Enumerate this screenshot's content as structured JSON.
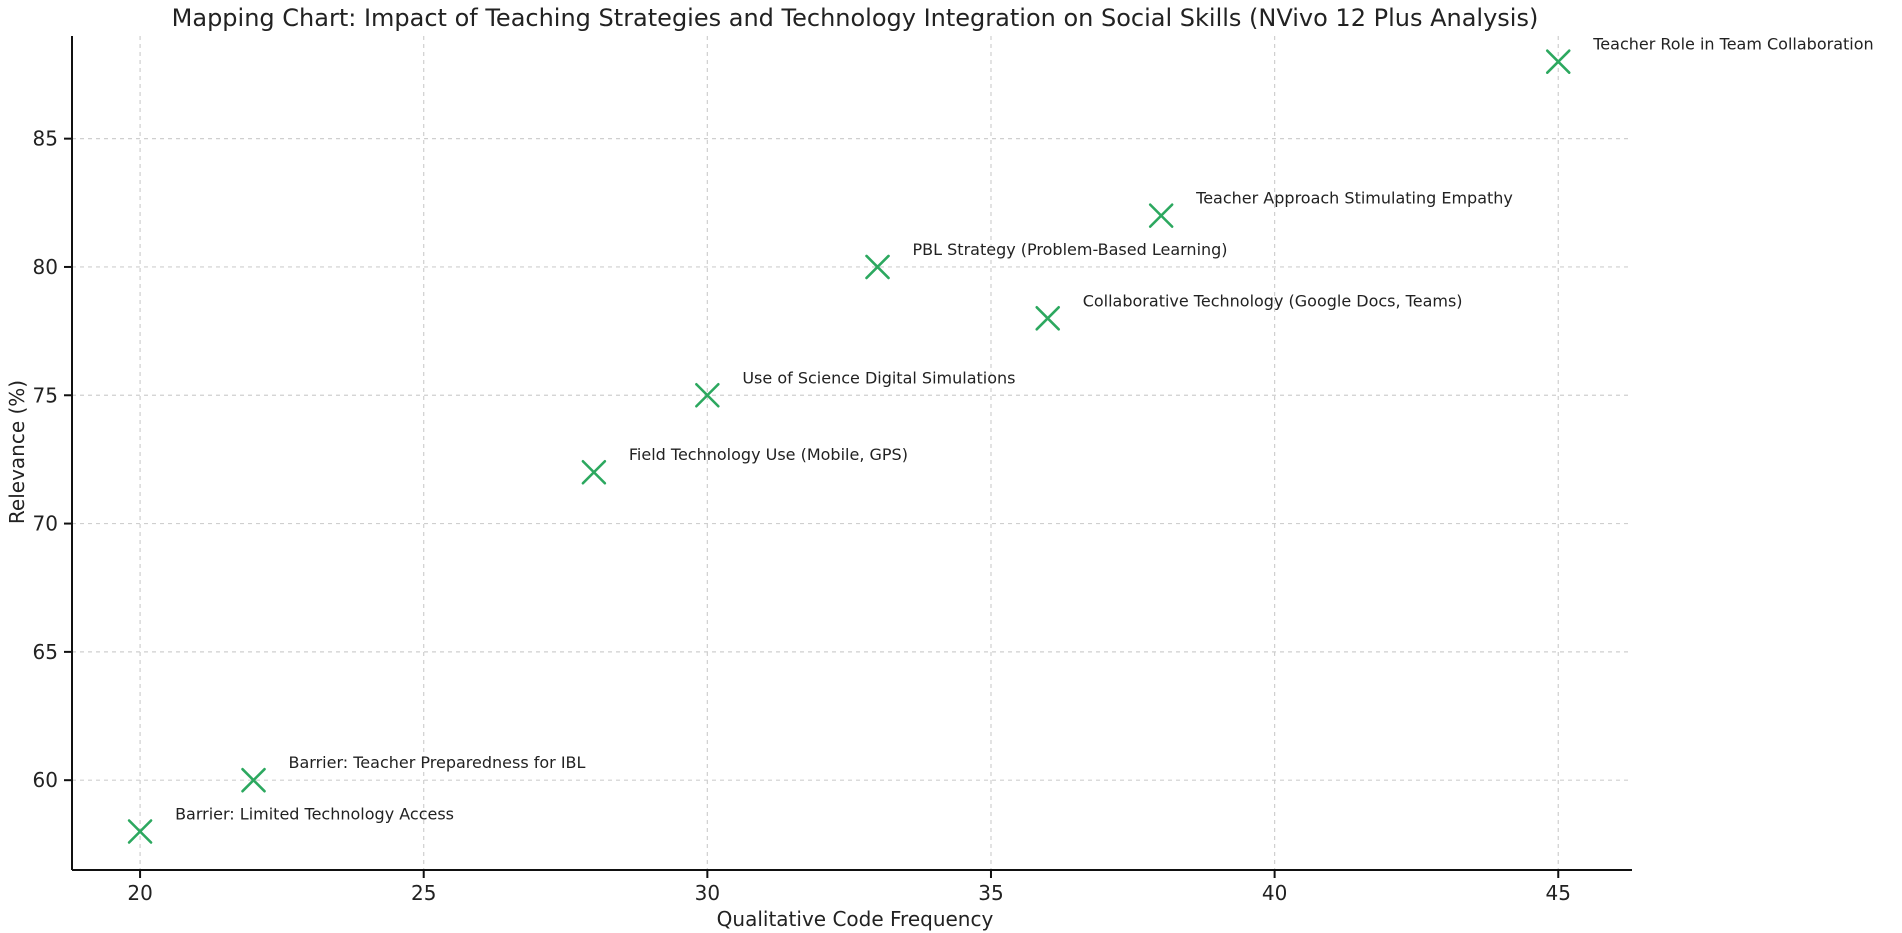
{
  "chart_data": {
    "type": "scatter",
    "title": "Mapping Chart: Impact of Teaching Strategies and Technology Integration on Social Skills (NVivo 12 Plus Analysis)",
    "xlabel": "Qualitative Code Frequency",
    "ylabel": "Relevance (%)",
    "xlim": [
      18.8,
      46.3
    ],
    "ylim": [
      56.5,
      89.0
    ],
    "x_ticks": [
      20,
      25,
      30,
      35,
      40,
      45
    ],
    "y_ticks": [
      60,
      65,
      70,
      75,
      80,
      85
    ],
    "grid": true,
    "marker": "x",
    "marker_color": "#2ca85f",
    "points": [
      {
        "label": "Barrier: Limited Technology Access",
        "x": 20,
        "y": 58
      },
      {
        "label": "Barrier: Teacher Preparedness for IBL",
        "x": 22,
        "y": 60
      },
      {
        "label": "Field Technology Use (Mobile, GPS)",
        "x": 28,
        "y": 72
      },
      {
        "label": "Use of Science Digital Simulations",
        "x": 30,
        "y": 75
      },
      {
        "label": "PBL Strategy (Problem-Based Learning)",
        "x": 33,
        "y": 80
      },
      {
        "label": "Collaborative Technology (Google Docs, Teams)",
        "x": 36,
        "y": 78
      },
      {
        "label": "Teacher Approach Stimulating Empathy",
        "x": 38,
        "y": 82
      },
      {
        "label": "Teacher Role in Team Collaboration",
        "x": 45,
        "y": 88
      }
    ]
  }
}
